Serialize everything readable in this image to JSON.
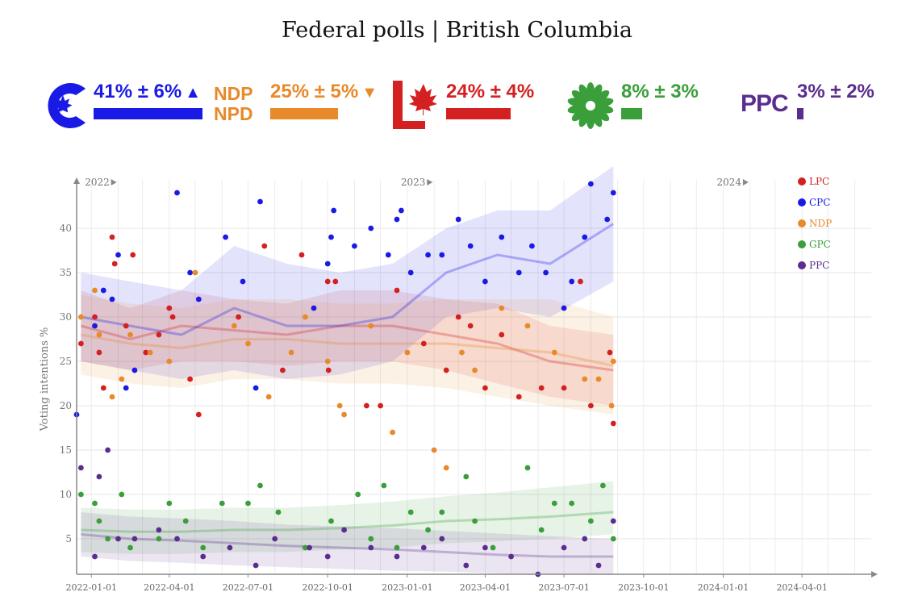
{
  "title": "Federal polls | British Columbia",
  "headline": [
    {
      "party": "CPC",
      "pct_label": "41% ± 6%",
      "value": 41,
      "trend": "▲",
      "color": "#1a1ae6",
      "icon": "cpc-logo-icon"
    },
    {
      "party": "NDP",
      "pct_label": "25% ± 5%",
      "value": 25,
      "trend": "▼",
      "color": "#e8892a",
      "icon": "ndp-logo-icon",
      "logo_text_top": "NDP",
      "logo_text_bottom": "NPD"
    },
    {
      "party": "LPC",
      "pct_label": "24% ± 4%",
      "value": 24,
      "trend": "",
      "color": "#d42020",
      "icon": "lpc-logo-icon"
    },
    {
      "party": "GPC",
      "pct_label": "8% ± 3%",
      "value": 8,
      "trend": "",
      "color": "#3a9e3a",
      "icon": "gpc-logo-icon"
    },
    {
      "party": "PPC",
      "pct_label": "3% ± 2%",
      "value": 3,
      "trend": "",
      "color": "#5b2d8e",
      "icon": "ppc-logo-icon",
      "logo_text": "PPC"
    }
  ],
  "chart_data": {
    "type": "scatter",
    "ylabel": "Voting intentions %",
    "ylim": [
      1,
      45
    ],
    "yticks": [
      5,
      10,
      15,
      20,
      25,
      30,
      35,
      40
    ],
    "xlim": [
      "2021-12-15",
      "2024-06-20"
    ],
    "xticks": [
      "2022-01-01",
      "2022-04-01",
      "2022-07-01",
      "2022-10-01",
      "2023-01-01",
      "2023-04-01",
      "2023-07-01",
      "2023-10-01",
      "2024-01-01",
      "2024-04-01"
    ],
    "year_markers": [
      {
        "date": "2022-01-01",
        "label": "2022"
      },
      {
        "date": "2023-01-01",
        "label": "2023"
      },
      {
        "date": "2024-01-01",
        "label": "2024"
      }
    ],
    "legend_position": "top-right",
    "grid": true,
    "series": [
      {
        "name": "LPC",
        "color": "#d42020",
        "trend_x": [
          "2021-12-20",
          "2022-02-15",
          "2022-04-15",
          "2022-06-15",
          "2022-08-15",
          "2022-10-15",
          "2022-12-15",
          "2023-02-15",
          "2023-04-15",
          "2023-06-15",
          "2023-08-27"
        ],
        "trend_y": [
          29,
          27.5,
          29,
          28.5,
          28,
          29,
          29,
          28,
          27,
          25,
          24
        ],
        "band_lo": [
          25,
          24,
          25,
          25,
          24.5,
          25,
          25,
          24,
          22.5,
          21,
          20
        ],
        "band_hi": [
          33,
          31,
          33,
          32,
          31.5,
          33,
          33,
          32,
          31.5,
          29,
          28
        ],
        "points": [
          [
            "2021-12-20",
            27
          ],
          [
            "2022-01-05",
            30
          ],
          [
            "2022-01-10",
            26
          ],
          [
            "2022-01-15",
            22
          ],
          [
            "2022-01-25",
            39
          ],
          [
            "2022-01-28",
            36
          ],
          [
            "2022-02-10",
            29
          ],
          [
            "2022-02-18",
            37
          ],
          [
            "2022-03-05",
            26
          ],
          [
            "2022-03-20",
            28
          ],
          [
            "2022-04-01",
            31
          ],
          [
            "2022-04-05",
            30
          ],
          [
            "2022-04-25",
            23
          ],
          [
            "2022-05-05",
            19
          ],
          [
            "2022-06-20",
            30
          ],
          [
            "2022-07-20",
            38
          ],
          [
            "2022-08-10",
            24
          ],
          [
            "2022-09-01",
            37
          ],
          [
            "2022-10-01",
            34
          ],
          [
            "2022-10-02",
            24
          ],
          [
            "2022-10-10",
            34
          ],
          [
            "2022-11-15",
            20
          ],
          [
            "2022-12-01",
            20
          ],
          [
            "2022-12-20",
            33
          ],
          [
            "2023-01-20",
            27
          ],
          [
            "2023-02-15",
            24
          ],
          [
            "2023-03-01",
            30
          ],
          [
            "2023-03-15",
            29
          ],
          [
            "2023-04-01",
            22
          ],
          [
            "2023-04-20",
            28
          ],
          [
            "2023-05-10",
            21
          ],
          [
            "2023-06-05",
            22
          ],
          [
            "2023-07-01",
            22
          ],
          [
            "2023-07-20",
            34
          ],
          [
            "2023-08-01",
            20
          ],
          [
            "2023-08-23",
            26
          ],
          [
            "2023-08-27",
            18
          ]
        ]
      },
      {
        "name": "CPC",
        "color": "#1a1ae6",
        "trend_x": [
          "2021-12-20",
          "2022-02-15",
          "2022-04-15",
          "2022-06-15",
          "2022-08-15",
          "2022-10-15",
          "2022-12-15",
          "2023-02-15",
          "2023-04-15",
          "2023-06-15",
          "2023-08-27"
        ],
        "trend_y": [
          30,
          29,
          28,
          31,
          29,
          29,
          30,
          35,
          37,
          36,
          40.5
        ],
        "band_lo": [
          25,
          24,
          23,
          24,
          23,
          23.5,
          25,
          30,
          31,
          30,
          34
        ],
        "band_hi": [
          35,
          34,
          33,
          38,
          36,
          35,
          36,
          40,
          42,
          42,
          47
        ],
        "points": [
          [
            "2021-12-15",
            19
          ],
          [
            "2022-01-05",
            29
          ],
          [
            "2022-01-15",
            33
          ],
          [
            "2022-01-25",
            32
          ],
          [
            "2022-02-01",
            37
          ],
          [
            "2022-02-10",
            22
          ],
          [
            "2022-02-20",
            24
          ],
          [
            "2022-04-10",
            44
          ],
          [
            "2022-04-25",
            35
          ],
          [
            "2022-05-05",
            32
          ],
          [
            "2022-06-05",
            39
          ],
          [
            "2022-06-25",
            34
          ],
          [
            "2022-07-10",
            22
          ],
          [
            "2022-07-15",
            43
          ],
          [
            "2022-09-15",
            31
          ],
          [
            "2022-10-01",
            36
          ],
          [
            "2022-10-05",
            39
          ],
          [
            "2022-10-08",
            42
          ],
          [
            "2022-11-01",
            38
          ],
          [
            "2022-11-20",
            40
          ],
          [
            "2022-12-10",
            37
          ],
          [
            "2022-12-20",
            41
          ],
          [
            "2022-12-25",
            42
          ],
          [
            "2023-01-05",
            35
          ],
          [
            "2023-01-25",
            37
          ],
          [
            "2023-02-10",
            37
          ],
          [
            "2023-03-01",
            41
          ],
          [
            "2023-03-15",
            38
          ],
          [
            "2023-04-01",
            34
          ],
          [
            "2023-04-20",
            39
          ],
          [
            "2023-05-10",
            35
          ],
          [
            "2023-05-25",
            38
          ],
          [
            "2023-06-10",
            35
          ],
          [
            "2023-07-01",
            31
          ],
          [
            "2023-07-10",
            34
          ],
          [
            "2023-07-25",
            39
          ],
          [
            "2023-08-01",
            45
          ],
          [
            "2023-08-20",
            41
          ],
          [
            "2023-08-27",
            44
          ]
        ]
      },
      {
        "name": "NDP",
        "color": "#e8892a",
        "trend_x": [
          "2021-12-20",
          "2022-02-15",
          "2022-04-15",
          "2022-06-15",
          "2022-08-15",
          "2022-10-15",
          "2022-12-15",
          "2023-02-15",
          "2023-04-15",
          "2023-06-15",
          "2023-08-27"
        ],
        "trend_y": [
          28,
          27,
          26.5,
          27.5,
          27.5,
          27,
          27,
          27,
          26.5,
          26,
          24.5
        ],
        "band_lo": [
          23.5,
          22.5,
          22,
          23,
          23,
          22.5,
          22.5,
          22,
          21,
          20,
          19
        ],
        "band_hi": [
          32.5,
          31.5,
          31,
          32,
          32,
          31.5,
          31.5,
          32,
          32,
          32,
          30
        ],
        "points": [
          [
            "2021-12-20",
            30
          ],
          [
            "2022-01-05",
            33
          ],
          [
            "2022-01-10",
            28
          ],
          [
            "2022-01-25",
            21
          ],
          [
            "2022-02-05",
            23
          ],
          [
            "2022-02-15",
            28
          ],
          [
            "2022-03-10",
            26
          ],
          [
            "2022-04-01",
            25
          ],
          [
            "2022-05-01",
            35
          ],
          [
            "2022-06-15",
            29
          ],
          [
            "2022-07-01",
            27
          ],
          [
            "2022-07-25",
            21
          ],
          [
            "2022-08-20",
            26
          ],
          [
            "2022-09-05",
            30
          ],
          [
            "2022-10-01",
            25
          ],
          [
            "2022-10-15",
            20
          ],
          [
            "2022-10-20",
            19
          ],
          [
            "2022-11-20",
            29
          ],
          [
            "2022-12-15",
            17
          ],
          [
            "2023-01-01",
            26
          ],
          [
            "2023-02-01",
            15
          ],
          [
            "2023-02-15",
            13
          ],
          [
            "2023-03-05",
            26
          ],
          [
            "2023-03-20",
            24
          ],
          [
            "2023-04-20",
            31
          ],
          [
            "2023-05-20",
            29
          ],
          [
            "2023-06-20",
            26
          ],
          [
            "2023-07-25",
            23
          ],
          [
            "2023-08-10",
            23
          ],
          [
            "2023-08-25",
            20
          ],
          [
            "2023-08-27",
            25
          ]
        ]
      },
      {
        "name": "GPC",
        "color": "#3a9e3a",
        "trend_x": [
          "2021-12-20",
          "2022-02-15",
          "2022-04-15",
          "2022-06-15",
          "2022-08-15",
          "2022-10-15",
          "2022-12-15",
          "2023-02-15",
          "2023-04-15",
          "2023-06-15",
          "2023-08-27"
        ],
        "trend_y": [
          6,
          5.8,
          5.8,
          6,
          6,
          6.2,
          6.5,
          7,
          7.2,
          7.5,
          8
        ],
        "band_lo": [
          3.5,
          3.3,
          3.3,
          3.5,
          3.5,
          3.8,
          4,
          4.5,
          4.7,
          5,
          5.5
        ],
        "band_hi": [
          8.5,
          8.3,
          8.3,
          8.5,
          8.5,
          8.8,
          9.2,
          9.8,
          10.2,
          10.8,
          11.5
        ],
        "points": [
          [
            "2021-12-20",
            10
          ],
          [
            "2022-01-05",
            9
          ],
          [
            "2022-01-10",
            7
          ],
          [
            "2022-01-20",
            5
          ],
          [
            "2022-02-05",
            10
          ],
          [
            "2022-02-15",
            4
          ],
          [
            "2022-03-20",
            5
          ],
          [
            "2022-04-01",
            9
          ],
          [
            "2022-04-20",
            7
          ],
          [
            "2022-05-10",
            4
          ],
          [
            "2022-06-01",
            9
          ],
          [
            "2022-07-01",
            9
          ],
          [
            "2022-07-15",
            11
          ],
          [
            "2022-08-05",
            8
          ],
          [
            "2022-09-05",
            4
          ],
          [
            "2022-10-05",
            7
          ],
          [
            "2022-11-05",
            10
          ],
          [
            "2022-11-20",
            5
          ],
          [
            "2022-12-05",
            11
          ],
          [
            "2022-12-20",
            4
          ],
          [
            "2023-01-05",
            8
          ],
          [
            "2023-01-25",
            6
          ],
          [
            "2023-02-10",
            8
          ],
          [
            "2023-03-10",
            12
          ],
          [
            "2023-03-20",
            7
          ],
          [
            "2023-04-10",
            4
          ],
          [
            "2023-05-20",
            13
          ],
          [
            "2023-06-05",
            6
          ],
          [
            "2023-06-20",
            9
          ],
          [
            "2023-07-10",
            9
          ],
          [
            "2023-08-01",
            7
          ],
          [
            "2023-08-15",
            11
          ],
          [
            "2023-08-27",
            5
          ]
        ]
      },
      {
        "name": "PPC",
        "color": "#5b2d8e",
        "trend_x": [
          "2021-12-20",
          "2022-02-15",
          "2022-04-15",
          "2022-06-15",
          "2022-08-15",
          "2022-10-15",
          "2022-12-15",
          "2023-02-15",
          "2023-04-15",
          "2023-06-15",
          "2023-08-27"
        ],
        "trend_y": [
          5.5,
          5,
          4.8,
          4.5,
          4.2,
          4,
          3.8,
          3.5,
          3.2,
          3,
          3
        ],
        "band_lo": [
          3,
          2.5,
          2.3,
          2,
          1.8,
          1.6,
          1.4,
          1.3,
          1.1,
          1,
          1
        ],
        "band_hi": [
          8,
          7.5,
          7.3,
          7,
          6.6,
          6.4,
          6.2,
          5.9,
          5.6,
          5.3,
          5
        ],
        "points": [
          [
            "2021-12-20",
            13
          ],
          [
            "2022-01-05",
            3
          ],
          [
            "2022-01-10",
            12
          ],
          [
            "2022-01-20",
            15
          ],
          [
            "2022-02-01",
            5
          ],
          [
            "2022-02-20",
            5
          ],
          [
            "2022-03-20",
            6
          ],
          [
            "2022-04-10",
            5
          ],
          [
            "2022-05-10",
            3
          ],
          [
            "2022-06-10",
            4
          ],
          [
            "2022-07-10",
            2
          ],
          [
            "2022-08-01",
            5
          ],
          [
            "2022-09-10",
            4
          ],
          [
            "2022-10-01",
            3
          ],
          [
            "2022-10-20",
            6
          ],
          [
            "2022-11-20",
            4
          ],
          [
            "2022-12-20",
            3
          ],
          [
            "2023-01-20",
            4
          ],
          [
            "2023-02-10",
            5
          ],
          [
            "2023-03-10",
            2
          ],
          [
            "2023-04-01",
            4
          ],
          [
            "2023-05-01",
            3
          ],
          [
            "2023-06-01",
            1
          ],
          [
            "2023-07-01",
            4
          ],
          [
            "2023-07-25",
            5
          ],
          [
            "2023-08-10",
            2
          ],
          [
            "2023-08-27",
            7
          ]
        ]
      }
    ]
  }
}
